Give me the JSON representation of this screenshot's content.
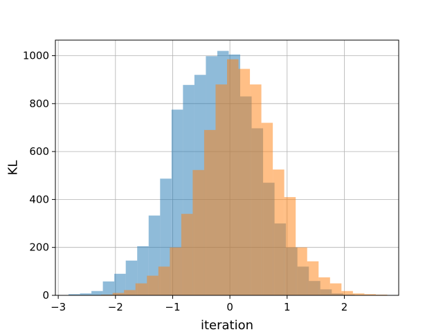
{
  "chart_data": {
    "type": "bar",
    "subtype": "overlaid-histogram",
    "xlabel": "iteration",
    "ylabel": "KL",
    "xlim": [
      -3.05,
      2.95
    ],
    "ylim": [
      0,
      1065
    ],
    "xticks": [
      -3,
      -2,
      -1,
      0,
      1,
      2
    ],
    "yticks": [
      0,
      200,
      400,
      600,
      800,
      1000
    ],
    "grid": true,
    "bar_alpha": 0.5,
    "series": [
      {
        "color": "#1f77b4",
        "bins_left": [
          -2.82,
          -2.62,
          -2.42,
          -2.22,
          -2.02,
          -1.82,
          -1.62,
          -1.42,
          -1.22,
          -1.02,
          -0.82,
          -0.62,
          -0.42,
          -0.22,
          -0.02,
          0.18,
          0.38,
          0.58,
          0.78,
          0.98,
          1.18,
          1.38,
          1.58,
          1.78,
          1.98
        ],
        "bin_width": 0.2,
        "values": [
          5,
          8,
          18,
          58,
          90,
          145,
          205,
          333,
          487,
          775,
          878,
          920,
          998,
          1020,
          1005,
          830,
          697,
          470,
          300,
          200,
          120,
          60,
          25,
          8,
          3
        ]
      },
      {
        "color": "#ff7f0e",
        "bins_left": [
          -2.25,
          -2.05,
          -1.85,
          -1.65,
          -1.45,
          -1.25,
          -1.05,
          -0.85,
          -0.65,
          -0.45,
          -0.25,
          -0.05,
          0.15,
          0.35,
          0.55,
          0.75,
          0.95,
          1.15,
          1.35,
          1.55,
          1.75,
          1.95,
          2.15,
          2.35,
          2.55
        ],
        "bin_width": 0.2,
        "values": [
          3,
          10,
          22,
          50,
          82,
          120,
          200,
          340,
          523,
          690,
          880,
          985,
          945,
          880,
          720,
          525,
          410,
          200,
          142,
          75,
          50,
          18,
          8,
          5,
          3
        ]
      }
    ]
  }
}
